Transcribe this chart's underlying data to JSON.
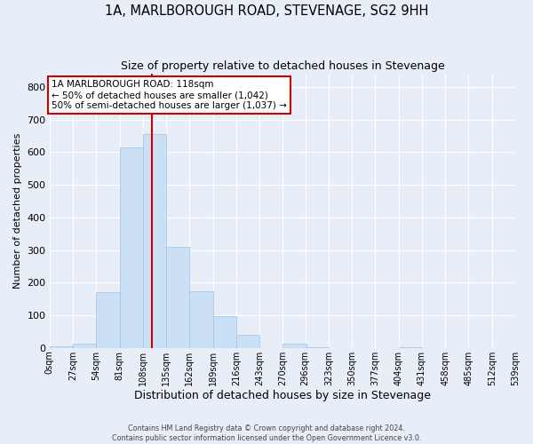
{
  "title": "1A, MARLBOROUGH ROAD, STEVENAGE, SG2 9HH",
  "subtitle": "Size of property relative to detached houses in Stevenage",
  "xlabel": "Distribution of detached houses by size in Stevenage",
  "ylabel": "Number of detached properties",
  "bin_edges": [
    0,
    27,
    54,
    81,
    108,
    135,
    162,
    189,
    216,
    243,
    270,
    296,
    323,
    350,
    377,
    404,
    431,
    458,
    485,
    512,
    539
  ],
  "bar_heights": [
    5,
    12,
    172,
    615,
    655,
    310,
    174,
    98,
    41,
    0,
    14,
    1,
    0,
    0,
    0,
    1,
    0,
    0,
    0,
    0
  ],
  "bar_color": "#cce0f5",
  "bar_edgecolor": "#a8c8e8",
  "property_line_x": 118,
  "property_line_color": "#cc0000",
  "ylim": [
    0,
    840
  ],
  "yticks": [
    0,
    100,
    200,
    300,
    400,
    500,
    600,
    700,
    800
  ],
  "xtick_labels": [
    "0sqm",
    "27sqm",
    "54sqm",
    "81sqm",
    "108sqm",
    "135sqm",
    "162sqm",
    "189sqm",
    "216sqm",
    "243sqm",
    "270sqm",
    "296sqm",
    "323sqm",
    "350sqm",
    "377sqm",
    "404sqm",
    "431sqm",
    "458sqm",
    "485sqm",
    "512sqm",
    "539sqm"
  ],
  "annotation_title": "1A MARLBOROUGH ROAD: 118sqm",
  "annotation_line1": "← 50% of detached houses are smaller (1,042)",
  "annotation_line2": "50% of semi-detached houses are larger (1,037) →",
  "annotation_box_facecolor": "#ffffff",
  "annotation_box_edgecolor": "#cc0000",
  "footer1": "Contains HM Land Registry data © Crown copyright and database right 2024.",
  "footer2": "Contains public sector information licensed under the Open Government Licence v3.0.",
  "fig_facecolor": "#e8eef8",
  "plot_facecolor": "#e8eef8",
  "grid_color": "#ffffff",
  "title_fontsize": 10.5,
  "subtitle_fontsize": 9,
  "ylabel_fontsize": 8,
  "xlabel_fontsize": 9
}
